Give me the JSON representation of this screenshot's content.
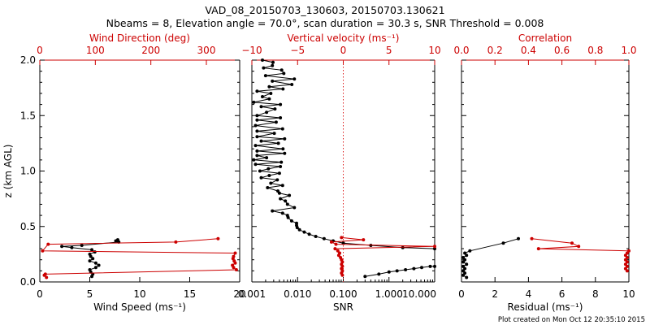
{
  "colors": {
    "black": "#000000",
    "red": "#cc0000",
    "refline": "#dd2222"
  },
  "header": {
    "title_line1": "VAD_08_20150703_130603, 20150703.130621",
    "title_line2": "Nbeams = 8, Elevation angle = 70.0°, scan duration = 30.3 s, SNR Threshold = 0.008"
  },
  "footer": {
    "created": "Plot created on Mon Oct 12 20:35:10 2015"
  },
  "chart_data": [
    {
      "type": "line",
      "name": "wind-profile",
      "ylabel": "z (km AGL)",
      "ylim": [
        0,
        2
      ],
      "yticks": [
        "0.0",
        "0.5",
        "1.0",
        "1.5",
        "2.0"
      ],
      "bottom_axis": {
        "label": "Wind Speed (ms⁻¹)",
        "lim": [
          0,
          20
        ],
        "ticks": [
          "0",
          "5",
          "10",
          "15",
          "20"
        ]
      },
      "top_axis": {
        "label": "Wind Direction (deg)",
        "lim": [
          0,
          360
        ],
        "ticks": [
          "0",
          "100",
          "200",
          "300"
        ]
      },
      "series": [
        {
          "color": "black",
          "axis": "bottom",
          "points": [
            [
              7.8,
              0.38
            ],
            [
              7.6,
              0.37
            ],
            [
              7.9,
              0.36
            ],
            [
              4.2,
              0.33
            ],
            [
              2.2,
              0.32
            ],
            [
              3.2,
              0.31
            ],
            [
              5.2,
              0.29
            ],
            [
              5.5,
              0.27
            ],
            [
              5.0,
              0.25
            ],
            [
              5.1,
              0.23
            ],
            [
              5.3,
              0.21
            ],
            [
              5.0,
              0.19
            ],
            [
              5.6,
              0.17
            ],
            [
              5.9,
              0.15
            ],
            [
              5.6,
              0.13
            ],
            [
              5.0,
              0.11
            ],
            [
              5.1,
              0.09
            ],
            [
              5.3,
              0.07
            ],
            [
              5.2,
              0.05
            ]
          ]
        },
        {
          "color": "red",
          "axis": "top",
          "points": [
            [
              321,
              0.39
            ],
            [
              245,
              0.36
            ],
            [
              15,
              0.34
            ],
            [
              5,
              0.28
            ],
            [
              352,
              0.26
            ],
            [
              349,
              0.23
            ],
            [
              348,
              0.21
            ],
            [
              350,
              0.19
            ],
            [
              352,
              0.17
            ],
            [
              347,
              0.15
            ],
            [
              349,
              0.13
            ],
            [
              354,
              0.11
            ],
            [
              10,
              0.07
            ],
            [
              8,
              0.06
            ],
            [
              12,
              0.04
            ]
          ]
        }
      ]
    },
    {
      "type": "line",
      "name": "snr-profile",
      "xscale": "log",
      "ylim": [
        0,
        2
      ],
      "bottom_axis": {
        "label": "SNR",
        "lim": [
          0.001,
          10
        ],
        "ticks": [
          "0.001",
          "0.010",
          "0.100",
          "1.000",
          "10.000"
        ]
      },
      "top_axis": {
        "label": "Vertical velocity (ms⁻¹)",
        "lim": [
          -10,
          10
        ],
        "ticks": [
          "−10",
          "−5",
          "0",
          "5",
          "10"
        ]
      },
      "reference_line": {
        "axis": "top",
        "value": 0,
        "style": "dotted"
      },
      "series": [
        {
          "color": "black",
          "axis": "bottom",
          "points": [
            [
              0.0017,
              2.0
            ],
            [
              0.0029,
              1.98
            ],
            [
              0.0028,
              1.95
            ],
            [
              0.0018,
              1.93
            ],
            [
              0.0045,
              1.91
            ],
            [
              0.005,
              1.88
            ],
            [
              0.002,
              1.86
            ],
            [
              0.0085,
              1.83
            ],
            [
              0.0028,
              1.81
            ],
            [
              0.0075,
              1.78
            ],
            [
              0.0024,
              1.76
            ],
            [
              0.0048,
              1.74
            ],
            [
              0.0013,
              1.72
            ],
            [
              0.0026,
              1.7
            ],
            [
              0.0017,
              1.67
            ],
            [
              0.0024,
              1.65
            ],
            [
              0.0011,
              1.62
            ],
            [
              0.0042,
              1.6
            ],
            [
              0.0016,
              1.58
            ],
            [
              0.0032,
              1.56
            ],
            [
              0.0021,
              1.53
            ],
            [
              0.0013,
              1.5
            ],
            [
              0.0042,
              1.48
            ],
            [
              0.0013,
              1.46
            ],
            [
              0.0034,
              1.44
            ],
            [
              0.0012,
              1.41
            ],
            [
              0.0047,
              1.38
            ],
            [
              0.0013,
              1.36
            ],
            [
              0.0031,
              1.34
            ],
            [
              0.0013,
              1.31
            ],
            [
              0.0052,
              1.29
            ],
            [
              0.0016,
              1.27
            ],
            [
              0.0038,
              1.25
            ],
            [
              0.0012,
              1.23
            ],
            [
              0.0048,
              1.2
            ],
            [
              0.0013,
              1.18
            ],
            [
              0.0052,
              1.16
            ],
            [
              0.0013,
              1.14
            ],
            [
              0.0021,
              1.12
            ],
            [
              0.0011,
              1.1
            ],
            [
              0.0044,
              1.08
            ],
            [
              0.0012,
              1.06
            ],
            [
              0.0042,
              1.04
            ],
            [
              0.0023,
              1.02
            ],
            [
              0.0015,
              1.0
            ],
            [
              0.004,
              0.98
            ],
            [
              0.0024,
              0.96
            ],
            [
              0.0016,
              0.94
            ],
            [
              0.0036,
              0.92
            ],
            [
              0.0026,
              0.89
            ],
            [
              0.0047,
              0.87
            ],
            [
              0.0022,
              0.85
            ],
            [
              0.0037,
              0.82
            ],
            [
              0.004,
              0.8
            ],
            [
              0.0066,
              0.78
            ],
            [
              0.0042,
              0.75
            ],
            [
              0.0054,
              0.73
            ],
            [
              0.006,
              0.7
            ],
            [
              0.0085,
              0.67
            ],
            [
              0.0028,
              0.64
            ],
            [
              0.0047,
              0.62
            ],
            [
              0.006,
              0.6
            ],
            [
              0.0062,
              0.58
            ],
            [
              0.0074,
              0.55
            ],
            [
              0.0095,
              0.53
            ],
            [
              0.0095,
              0.51
            ],
            [
              0.0098,
              0.49
            ],
            [
              0.011,
              0.47
            ],
            [
              0.014,
              0.45
            ],
            [
              0.018,
              0.43
            ],
            [
              0.025,
              0.41
            ],
            [
              0.038,
              0.39
            ],
            [
              0.06,
              0.37
            ],
            [
              0.1,
              0.35
            ],
            [
              0.4,
              0.33
            ],
            [
              2.0,
              0.31
            ],
            [
              10.0,
              0.3
            ]
          ]
        },
        {
          "color": "black",
          "axis": "bottom",
          "points": [
            [
              0.3,
              0.05
            ],
            [
              0.6,
              0.07
            ],
            [
              1.0,
              0.09
            ],
            [
              1.5,
              0.1
            ],
            [
              2.3,
              0.11
            ],
            [
              3.5,
              0.12
            ],
            [
              5.2,
              0.13
            ],
            [
              8.0,
              0.14
            ],
            [
              10.0,
              0.14
            ]
          ]
        },
        {
          "color": "red",
          "axis": "top",
          "points": [
            [
              -0.2,
              0.4
            ],
            [
              2.2,
              0.38
            ],
            [
              -1.3,
              0.36
            ],
            [
              -0.8,
              0.34
            ],
            [
              10,
              0.32
            ],
            [
              -0.9,
              0.3
            ],
            [
              -0.6,
              0.28
            ],
            [
              -0.4,
              0.26
            ],
            [
              -0.5,
              0.24
            ],
            [
              -0.3,
              0.22
            ],
            [
              -0.2,
              0.2
            ],
            [
              -0.1,
              0.18
            ],
            [
              -0.2,
              0.16
            ],
            [
              -0.1,
              0.14
            ],
            [
              -0.2,
              0.12
            ],
            [
              -0.1,
              0.1
            ],
            [
              -0.2,
              0.08
            ],
            [
              -0.1,
              0.06
            ]
          ]
        }
      ]
    },
    {
      "type": "line",
      "name": "correlation-residual",
      "ylim": [
        0,
        2
      ],
      "bottom_axis": {
        "label": "Residual (ms⁻¹)",
        "lim": [
          0,
          10
        ],
        "ticks": [
          "0",
          "2",
          "4",
          "6",
          "8",
          "10"
        ]
      },
      "top_axis": {
        "label": "Correlation",
        "lim": [
          0,
          1
        ],
        "ticks": [
          "0.0",
          "0.2",
          "0.4",
          "0.6",
          "0.8",
          "1.0"
        ]
      },
      "series": [
        {
          "color": "black",
          "axis": "bottom",
          "points": [
            [
              3.4,
              0.39
            ],
            [
              2.5,
              0.35
            ],
            [
              0.5,
              0.28
            ],
            [
              0.2,
              0.26
            ],
            [
              0.3,
              0.24
            ],
            [
              0.1,
              0.22
            ],
            [
              0.2,
              0.2
            ],
            [
              0.1,
              0.18
            ],
            [
              0.3,
              0.16
            ],
            [
              0.1,
              0.14
            ],
            [
              0.2,
              0.12
            ],
            [
              0.1,
              0.1
            ],
            [
              0.2,
              0.08
            ],
            [
              0.1,
              0.06
            ],
            [
              0.3,
              0.04
            ]
          ]
        },
        {
          "color": "red",
          "axis": "top",
          "points": [
            [
              0.42,
              0.39
            ],
            [
              0.66,
              0.35
            ],
            [
              0.7,
              0.32
            ],
            [
              0.46,
              0.3
            ],
            [
              1.0,
              0.28
            ],
            [
              0.99,
              0.26
            ],
            [
              0.98,
              0.24
            ],
            [
              0.99,
              0.22
            ],
            [
              0.98,
              0.2
            ],
            [
              0.99,
              0.18
            ],
            [
              0.98,
              0.16
            ],
            [
              0.99,
              0.14
            ],
            [
              0.98,
              0.12
            ],
            [
              0.99,
              0.1
            ]
          ]
        }
      ]
    }
  ]
}
